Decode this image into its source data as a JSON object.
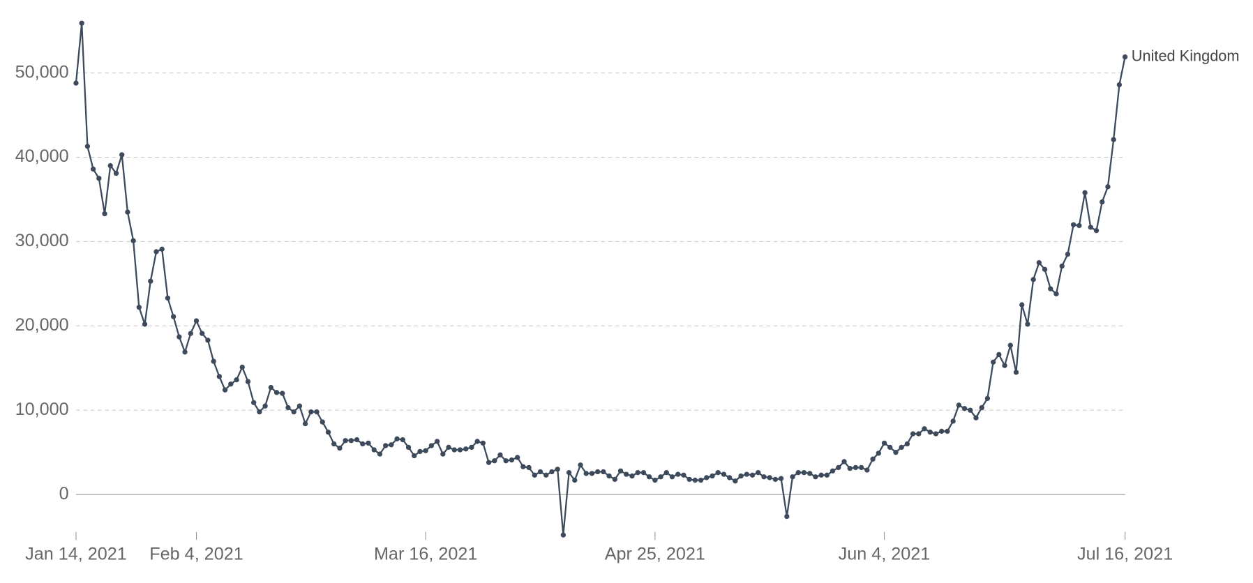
{
  "chart_data": {
    "type": "line",
    "x": [
      "2021-01-14",
      "2021-01-15",
      "2021-01-16",
      "2021-01-17",
      "2021-01-18",
      "2021-01-19",
      "2021-01-20",
      "2021-01-21",
      "2021-01-22",
      "2021-01-23",
      "2021-01-24",
      "2021-01-25",
      "2021-01-26",
      "2021-01-27",
      "2021-01-28",
      "2021-01-29",
      "2021-01-30",
      "2021-01-31",
      "2021-02-01",
      "2021-02-02",
      "2021-02-03",
      "2021-02-04",
      "2021-02-05",
      "2021-02-06",
      "2021-02-07",
      "2021-02-08",
      "2021-02-09",
      "2021-02-10",
      "2021-02-11",
      "2021-02-12",
      "2021-02-13",
      "2021-02-14",
      "2021-02-15",
      "2021-02-16",
      "2021-02-17",
      "2021-02-18",
      "2021-02-19",
      "2021-02-20",
      "2021-02-21",
      "2021-02-22",
      "2021-02-23",
      "2021-02-24",
      "2021-02-25",
      "2021-02-26",
      "2021-02-27",
      "2021-02-28",
      "2021-03-01",
      "2021-03-02",
      "2021-03-03",
      "2021-03-04",
      "2021-03-05",
      "2021-03-06",
      "2021-03-07",
      "2021-03-08",
      "2021-03-09",
      "2021-03-10",
      "2021-03-11",
      "2021-03-12",
      "2021-03-13",
      "2021-03-14",
      "2021-03-15",
      "2021-03-16",
      "2021-03-17",
      "2021-03-18",
      "2021-03-19",
      "2021-03-20",
      "2021-03-21",
      "2021-03-22",
      "2021-03-23",
      "2021-03-24",
      "2021-03-25",
      "2021-03-26",
      "2021-03-27",
      "2021-03-28",
      "2021-03-29",
      "2021-03-30",
      "2021-03-31",
      "2021-04-01",
      "2021-04-02",
      "2021-04-03",
      "2021-04-04",
      "2021-04-05",
      "2021-04-06",
      "2021-04-07",
      "2021-04-08",
      "2021-04-09",
      "2021-04-10",
      "2021-04-11",
      "2021-04-12",
      "2021-04-13",
      "2021-04-14",
      "2021-04-15",
      "2021-04-16",
      "2021-04-17",
      "2021-04-18",
      "2021-04-19",
      "2021-04-20",
      "2021-04-21",
      "2021-04-22",
      "2021-04-23",
      "2021-04-24",
      "2021-04-25",
      "2021-04-26",
      "2021-04-27",
      "2021-04-28",
      "2021-04-29",
      "2021-04-30",
      "2021-05-01",
      "2021-05-02",
      "2021-05-03",
      "2021-05-04",
      "2021-05-05",
      "2021-05-06",
      "2021-05-07",
      "2021-05-08",
      "2021-05-09",
      "2021-05-10",
      "2021-05-11",
      "2021-05-12",
      "2021-05-13",
      "2021-05-14",
      "2021-05-15",
      "2021-05-16",
      "2021-05-17",
      "2021-05-18",
      "2021-05-19",
      "2021-05-20",
      "2021-05-21",
      "2021-05-22",
      "2021-05-23",
      "2021-05-24",
      "2021-05-25",
      "2021-05-26",
      "2021-05-27",
      "2021-05-28",
      "2021-05-29",
      "2021-05-30",
      "2021-05-31",
      "2021-06-01",
      "2021-06-02",
      "2021-06-03",
      "2021-06-04",
      "2021-06-05",
      "2021-06-06",
      "2021-06-07",
      "2021-06-08",
      "2021-06-09",
      "2021-06-10",
      "2021-06-11",
      "2021-06-12",
      "2021-06-13",
      "2021-06-14",
      "2021-06-15",
      "2021-06-16",
      "2021-06-17",
      "2021-06-18",
      "2021-06-19",
      "2021-06-20",
      "2021-06-21",
      "2021-06-22",
      "2021-06-23",
      "2021-06-24",
      "2021-06-25",
      "2021-06-26",
      "2021-06-27",
      "2021-06-28",
      "2021-06-29",
      "2021-06-30",
      "2021-07-01",
      "2021-07-02",
      "2021-07-03",
      "2021-07-04",
      "2021-07-05",
      "2021-07-06",
      "2021-07-07",
      "2021-07-08",
      "2021-07-09",
      "2021-07-10",
      "2021-07-11",
      "2021-07-12",
      "2021-07-13",
      "2021-07-14",
      "2021-07-15",
      "2021-07-16"
    ],
    "series": [
      {
        "name": "United Kingdom",
        "color": "#3d4a5c",
        "values": [
          48800,
          55900,
          41300,
          38600,
          37500,
          33300,
          39000,
          38100,
          40300,
          33500,
          30100,
          22200,
          20200,
          25300,
          28800,
          29100,
          23300,
          21100,
          18700,
          16900,
          19100,
          20600,
          19100,
          18300,
          15800,
          14000,
          12400,
          13100,
          13600,
          15100,
          13400,
          10900,
          9800,
          10500,
          12700,
          12100,
          12000,
          10300,
          9800,
          10500,
          8400,
          9800,
          9800,
          8600,
          7400,
          6000,
          5500,
          6400,
          6400,
          6500,
          6000,
          6100,
          5300,
          4800,
          5800,
          5900,
          6600,
          6500,
          5600,
          4600,
          5100,
          5200,
          5800,
          6300,
          4800,
          5600,
          5300,
          5300,
          5400,
          5600,
          6300,
          6100,
          3800,
          4000,
          4700,
          4000,
          4100,
          4400,
          3300,
          3200,
          2300,
          2700,
          2300,
          2700,
          3000,
          -4800,
          2600,
          1700,
          3500,
          2500,
          2500,
          2700,
          2700,
          2200,
          1800,
          2800,
          2400,
          2200,
          2600,
          2600,
          2100,
          1700,
          2100,
          2600,
          2100,
          2400,
          2300,
          1800,
          1700,
          1700,
          2000,
          2200,
          2600,
          2400,
          2000,
          1600,
          2200,
          2400,
          2300,
          2600,
          2100,
          2000,
          1800,
          1900,
          -2600,
          2100,
          2600,
          2600,
          2500,
          2100,
          2300,
          2300,
          2800,
          3200,
          3900,
          3100,
          3200,
          3200,
          2900,
          4200,
          4900,
          6100,
          5600,
          5000,
          5600,
          6000,
          7200,
          7200,
          7800,
          7400,
          7200,
          7500,
          7500,
          8700,
          10600,
          10200,
          10000,
          9100,
          10300,
          11400,
          15700,
          16600,
          15300,
          17700,
          14500,
          22500,
          20200,
          25500,
          27500,
          26700,
          24400,
          23800,
          27100,
          28500,
          32000,
          31900,
          35800,
          31700,
          31300,
          34700,
          36500,
          42100,
          48600,
          51900
        ]
      }
    ],
    "xlim": [
      "2021-01-14",
      "2021-07-16"
    ],
    "xticks": [
      {
        "value": "2021-01-14",
        "label": "Jan 14, 2021"
      },
      {
        "value": "2021-02-04",
        "label": "Feb 4, 2021"
      },
      {
        "value": "2021-03-16",
        "label": "Mar 16, 2021"
      },
      {
        "value": "2021-04-25",
        "label": "Apr 25, 2021"
      },
      {
        "value": "2021-06-04",
        "label": "Jun 4, 2021"
      },
      {
        "value": "2021-07-16",
        "label": "Jul 16, 2021"
      }
    ],
    "ylim": [
      -5000,
      56000
    ],
    "yticks": [
      0,
      {
        "value": 10000,
        "label": "10,000"
      },
      {
        "value": 20000,
        "label": "20,000"
      },
      {
        "value": 30000,
        "label": "30,000"
      },
      {
        "value": 40000,
        "label": "40,000"
      },
      {
        "value": 50000,
        "label": "50,000"
      }
    ],
    "grid": true
  }
}
